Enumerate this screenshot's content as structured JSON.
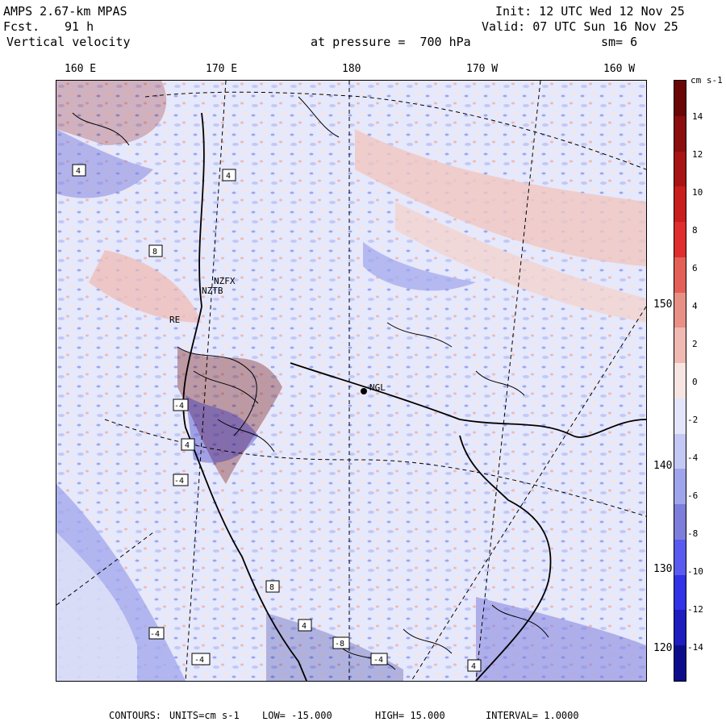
{
  "header": {
    "model": "AMPS 2.67-km MPAS",
    "forecast_label": "Fcst.",
    "forecast_hours": "91 h",
    "field": "Vertical velocity",
    "init": "Init: 12 UTC Wed 12 Nov 25",
    "valid": "Valid: 07 UTC Sun 16 Nov 25",
    "level": "at pressure =  700 hPa",
    "smoothing": "sm= 6"
  },
  "map": {
    "top_longitudes": [
      "160 E",
      "170 E",
      "180",
      "170 W",
      "160 W"
    ],
    "right_longitudes": [
      "150 W",
      "140 W",
      "130 W",
      "120 W"
    ],
    "station_labels": [
      "NGL",
      "RE",
      "NZFX",
      "NZTB"
    ],
    "box_labels": [
      "4",
      "4",
      "8",
      "-4",
      "4",
      "-4",
      "8",
      "-4",
      "-4",
      "4",
      "-8",
      "-4",
      "4"
    ]
  },
  "colorbar": {
    "unit_label": "cm s-1",
    "tick_labels": [
      "14",
      "12",
      "10",
      "8",
      "6",
      "4",
      "2",
      "0",
      "-2",
      "-4",
      "-6",
      "-8",
      "-10",
      "-12",
      "-14"
    ],
    "colors": [
      "#0d0d8c",
      "#1e1ebe",
      "#3232e6",
      "#5a5af0",
      "#7d7ddc",
      "#9fa5ec",
      "#c3c8f5",
      "#e3e6fa",
      "#f7e5e2",
      "#f0b9b2",
      "#e88f86",
      "#e36058",
      "#e02d2d",
      "#c81e1e",
      "#a81414",
      "#8b0d0d",
      "#6a0606"
    ]
  },
  "footer": {
    "contours_label": "CONTOURS:",
    "units": "UNITS=cm s-1",
    "low": "LOW= -15.000",
    "high": "HIGH= 15.000",
    "interval": "INTERVAL= 1.0000"
  }
}
